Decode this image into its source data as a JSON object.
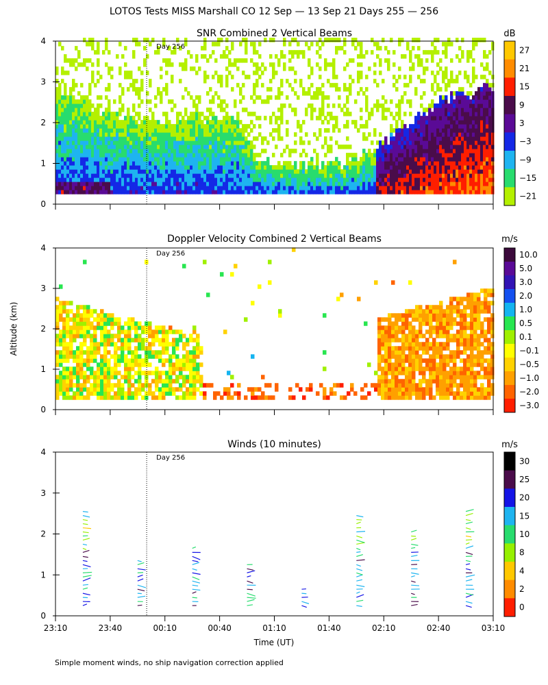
{
  "figure": {
    "title": "LOTOS Tests MISS Marshall CO  12 Sep — 13 Sep 21 Days 255 — 256",
    "y_axis_label": "Altitude (km)",
    "x_axis_label": "Time (UT)",
    "footnote": "Simple moment winds, no ship navigation correction applied",
    "day_marker": "Day 256"
  },
  "chart_data": [
    {
      "type": "heatmap",
      "title": "SNR Combined 2 Vertical Beams",
      "units": "dB",
      "ylim": [
        0,
        4
      ],
      "y_ticks": [
        "0",
        "1",
        "2",
        "3",
        "4"
      ],
      "x_range_minutes": [
        0,
        240
      ],
      "x_ticks_minutes": [
        0,
        30,
        60,
        90,
        120,
        150,
        180,
        210,
        240
      ],
      "day_boundary_minutes": 50,
      "colorbar_labels": [
        "27",
        "21",
        "15",
        "9",
        "3",
        "−3",
        "−9",
        "−15",
        "−21"
      ],
      "colorbar_colors": [
        "#ffc800",
        "#ff8c00",
        "#ff1e00",
        "#4a0c4a",
        "#5a0a96",
        "#1428e6",
        "#1eb4f0",
        "#28dc6e",
        "#b4f000"
      ],
      "layer_top_km": [
        [
          0,
          2.8
        ],
        [
          20,
          2.3
        ],
        [
          40,
          2.0
        ],
        [
          60,
          1.9
        ],
        [
          80,
          2.1
        ],
        [
          100,
          2.0
        ],
        [
          110,
          1.1
        ],
        [
          130,
          0.9
        ],
        [
          160,
          1.0
        ],
        [
          175,
          1.3
        ],
        [
          190,
          1.9
        ],
        [
          210,
          2.5
        ],
        [
          240,
          2.8
        ]
      ]
    },
    {
      "type": "heatmap",
      "title": "Doppler Velocity Combined 2 Vertical Beams",
      "units": "m/s",
      "ylim": [
        0,
        4
      ],
      "y_ticks": [
        "0",
        "1",
        "2",
        "3",
        "4"
      ],
      "x_range_minutes": [
        0,
        240
      ],
      "x_ticks_minutes": [
        0,
        30,
        60,
        90,
        120,
        150,
        180,
        210,
        240
      ],
      "day_boundary_minutes": 50,
      "colorbar_labels": [
        "10.0",
        "5.0",
        "3.0",
        "2.0",
        "1.0",
        "0.5",
        "0.1",
        "−0.1",
        "−0.5",
        "−1.0",
        "−2.0",
        "−3.0"
      ],
      "colorbar_colors": [
        "#3c0a3c",
        "#5a0a96",
        "#3214b4",
        "#1450f0",
        "#14b4f0",
        "#28e650",
        "#a0f000",
        "#ffff00",
        "#ffd200",
        "#ffa000",
        "#ff6400",
        "#ff1e00"
      ]
    },
    {
      "type": "scatter",
      "title": "Winds (10 minutes)",
      "units": "m/s",
      "ylim": [
        0,
        4
      ],
      "y_ticks": [
        "0",
        "1",
        "2",
        "3",
        "4"
      ],
      "x_range_minutes": [
        0,
        240
      ],
      "x_ticks_minutes": [
        0,
        30,
        60,
        90,
        120,
        150,
        180,
        210,
        240
      ],
      "x_tick_labels": [
        "23:10",
        "23:40",
        "00:10",
        "00:40",
        "01:10",
        "01:40",
        "02:10",
        "02:40",
        "03:10"
      ],
      "day_boundary_minutes": 50,
      "colorbar_labels": [
        "30",
        "25",
        "20",
        "15",
        "10",
        "8",
        "4",
        "2",
        "0"
      ],
      "colorbar_colors": [
        "#000000",
        "#4a0c4a",
        "#1414e6",
        "#1eb4f0",
        "#28dc6e",
        "#96f000",
        "#ffc800",
        "#ff8c00",
        "#ff1e00"
      ],
      "profiles_minutes": [
        15,
        45,
        75,
        105,
        135,
        165,
        195,
        225
      ],
      "profile_tops_km": [
        2.6,
        1.35,
        1.7,
        1.25,
        0.7,
        2.5,
        2.1,
        2.65
      ]
    }
  ]
}
